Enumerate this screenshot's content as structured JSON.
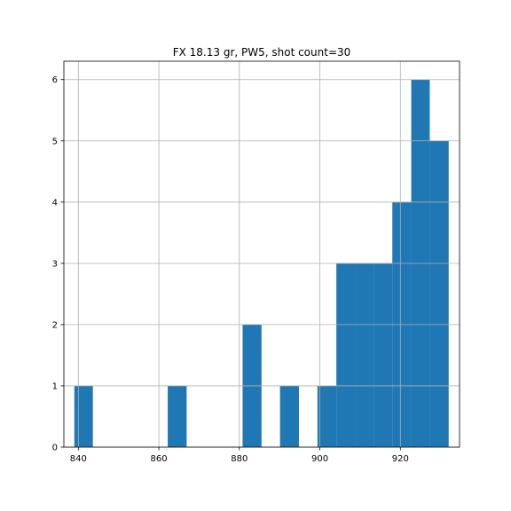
{
  "chart_data": {
    "type": "bar",
    "title": "FX 18.13 gr, PW5, shot count=30",
    "xlabel": "",
    "ylabel": "",
    "xlim": [
      836.4,
      934.7
    ],
    "ylim": [
      0,
      6.3
    ],
    "x_ticks": [
      840,
      860,
      880,
      900,
      920
    ],
    "y_ticks": [
      0,
      1,
      2,
      3,
      4,
      5,
      6
    ],
    "grid": true,
    "bar_color": "#1f77b4",
    "bin_edges": [
      839.0,
      843.6,
      848.3,
      852.9,
      857.6,
      862.2,
      866.9,
      871.5,
      876.2,
      880.8,
      885.5,
      890.1,
      894.8,
      899.4,
      904.1,
      908.7,
      913.4,
      918.0,
      922.7,
      927.3,
      932.0
    ],
    "values": [
      1,
      0,
      0,
      0,
      0,
      1,
      0,
      0,
      0,
      2,
      0,
      1,
      0,
      1,
      3,
      3,
      3,
      4,
      6,
      5
    ]
  }
}
